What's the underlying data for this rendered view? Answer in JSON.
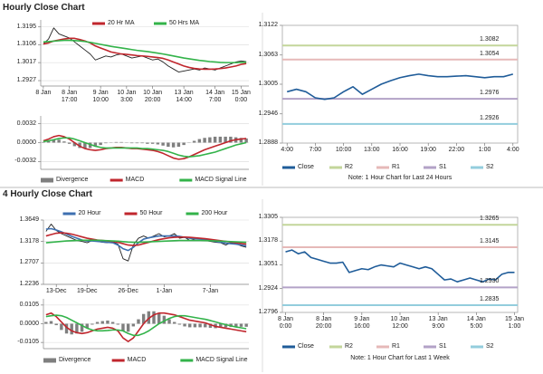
{
  "headings": [
    "Hourly Close Chart",
    "4 Hourly Close Chart"
  ],
  "chart_data": [
    {
      "type": "line",
      "legend": "top",
      "grid": true,
      "ylim": [
        1.29,
        1.323
      ],
      "yticks": [
        1.3195,
        1.3106,
        1.3017,
        1.2927
      ],
      "categories": [
        "8 Jan",
        null,
        null,
        null,
        null,
        "8 Jan\n17:00",
        null,
        null,
        null,
        null,
        null,
        "9 Jan\n10:00",
        null,
        null,
        null,
        null,
        "10 Jan\n3:00",
        null,
        null,
        null,
        null,
        "10 Jan\n20:00",
        null,
        null,
        null,
        null,
        null,
        "13 Jan\n14:00",
        null,
        null,
        null,
        null,
        null,
        "14 Jan\n7:00",
        null,
        null,
        null,
        null,
        "15 Jan\n0:00",
        null
      ],
      "series": [
        {
          "color": "#222222",
          "values": [
            1.311,
            1.3135,
            1.319,
            1.316,
            1.315,
            1.314,
            1.312,
            1.31,
            1.308,
            1.306,
            1.303,
            1.304,
            1.305,
            1.3045,
            1.3055,
            1.306,
            1.305,
            1.304,
            1.3045,
            1.305,
            1.304,
            1.303,
            1.3035,
            1.302,
            1.3,
            1.2985,
            1.297,
            1.2975,
            1.298,
            1.2985,
            1.298,
            1.299,
            1.2985,
            1.298,
            1.299,
            1.3,
            1.301,
            1.302,
            1.3025,
            1.3022
          ]
        },
        {
          "name": "20 Hr MA",
          "color": "#c0262d",
          "values": [
            1.311,
            1.3115,
            1.3125,
            1.313,
            1.3135,
            1.3138,
            1.3138,
            1.3132,
            1.3125,
            1.3115,
            1.31,
            1.309,
            1.308,
            1.307,
            1.3065,
            1.306,
            1.3058,
            1.3055,
            1.3052,
            1.305,
            1.3048,
            1.3045,
            1.3042,
            1.3038,
            1.303,
            1.302,
            1.301,
            1.3,
            1.2993,
            1.2988,
            1.2985,
            1.2984,
            1.2984,
            1.2985,
            1.2987,
            1.299,
            1.2995,
            1.3,
            1.3008,
            1.3012
          ]
        },
        {
          "name": "50 Hrs MA",
          "color": "#33b34a",
          "values": [
            1.312,
            1.3122,
            1.3124,
            1.3126,
            1.3128,
            1.3128,
            1.3127,
            1.3125,
            1.3122,
            1.3118,
            1.3113,
            1.3108,
            1.3103,
            1.3098,
            1.3094,
            1.309,
            1.3086,
            1.3082,
            1.3078,
            1.3075,
            1.3072,
            1.3068,
            1.3064,
            1.306,
            1.3055,
            1.305,
            1.3045,
            1.304,
            1.3036,
            1.3032,
            1.3028,
            1.3025,
            1.3022,
            1.302,
            1.3018,
            1.3017,
            1.3017,
            1.3017,
            1.3018,
            1.3019
          ]
        }
      ]
    },
    {
      "type": "line",
      "legend": "bottom",
      "grid": true,
      "ylim": [
        -0.0045,
        0.0045
      ],
      "yticks": [
        0.0032,
        {
          "value": 0,
          "label": "0.0000"
        },
        -0.0032
      ],
      "series": [
        {
          "name": "Divergence",
          "type": "bar",
          "color": "#7f7f7f",
          "values": [
            0.0001,
            0.0003,
            0.0005,
            0.0005,
            0.0002,
            -0.0002,
            -0.0006,
            -0.0009,
            -0.001,
            -0.0009,
            -0.0007,
            -0.0004,
            -0.0001,
            0.0,
            0.0001,
            0.0001,
            0.0,
            -0.0001,
            -0.0001,
            -0.0001,
            -0.0002,
            -0.0002,
            -0.0003,
            -0.0005,
            -0.0007,
            -0.0008,
            -0.0007,
            -0.0004,
            0.0,
            0.0003,
            0.0006,
            0.0008,
            0.0009,
            0.001,
            0.001,
            0.001,
            0.001,
            0.0009,
            0.0008,
            0.0007
          ]
        },
        {
          "name": "MACD",
          "color": "#c0262d",
          "values": [
            0.0003,
            0.0006,
            0.001,
            0.0012,
            0.001,
            0.0006,
            0.0,
            -0.0006,
            -0.001,
            -0.0012,
            -0.0013,
            -0.0012,
            -0.001,
            -0.0009,
            -0.0008,
            -0.0008,
            -0.0009,
            -0.001,
            -0.001,
            -0.0011,
            -0.0012,
            -0.0013,
            -0.0015,
            -0.0018,
            -0.0022,
            -0.0026,
            -0.0028,
            -0.0027,
            -0.0024,
            -0.002,
            -0.0016,
            -0.0012,
            -0.0009,
            -0.0006,
            -0.0003,
            0.0,
            0.0003,
            0.0005,
            0.0006,
            0.0007
          ]
        },
        {
          "name": "MACD Signal Line",
          "color": "#33b34a",
          "values": [
            0.0002,
            0.0003,
            0.0005,
            0.0007,
            0.0008,
            0.0008,
            0.0006,
            0.0003,
            0.0,
            -0.0003,
            -0.0006,
            -0.0008,
            -0.0009,
            -0.0009,
            -0.0009,
            -0.0009,
            -0.0009,
            -0.0009,
            -0.0009,
            -0.001,
            -0.001,
            -0.0011,
            -0.0012,
            -0.0013,
            -0.0015,
            -0.0018,
            -0.0021,
            -0.0023,
            -0.0024,
            -0.0023,
            -0.0022,
            -0.002,
            -0.0018,
            -0.0016,
            -0.0013,
            -0.001,
            -0.0007,
            -0.0004,
            -0.0002,
            0.0
          ]
        }
      ]
    },
    {
      "type": "line",
      "legend": "bottom",
      "grid": false,
      "note": "Note: 1 Hour Chart for Last 24 Hours",
      "ylim": [
        1.2888,
        1.3122
      ],
      "yticks": [
        1.3122,
        1.3063,
        1.3005,
        1.2946,
        1.2888
      ],
      "categories": [
        "4:00",
        null,
        null,
        "7:00",
        null,
        null,
        "10:00",
        null,
        null,
        "13:00",
        null,
        null,
        "16:00",
        null,
        null,
        "19:00",
        null,
        null,
        "22:00",
        null,
        null,
        "1:00",
        null,
        null,
        "4:00"
      ],
      "series": [
        {
          "name": "Close",
          "color": "#1f5c99",
          "values": [
            1.299,
            1.2995,
            1.299,
            1.2978,
            1.2975,
            1.2978,
            1.299,
            1.3,
            1.2985,
            1.2995,
            1.3005,
            1.3012,
            1.3018,
            1.3022,
            1.3025,
            1.3022,
            1.302,
            1.302,
            1.3021,
            1.3022,
            1.302,
            1.3018,
            1.302,
            1.302,
            1.3025
          ]
        }
      ],
      "levels": [
        {
          "name": "R2",
          "color": "#c3d69b",
          "value": 1.3082
        },
        {
          "name": "R1",
          "color": "#e6b9b8",
          "value": 1.3054
        },
        {
          "name": "S1",
          "color": "#b3a2c7",
          "value": 1.2976
        },
        {
          "name": "S2",
          "color": "#93cddd",
          "value": 1.2926
        }
      ]
    },
    {
      "type": "line",
      "legend": "top",
      "grid": true,
      "ylim": [
        1.2236,
        1.3649
      ],
      "yticks": [
        1.3649,
        1.3178,
        1.2707,
        1.2236
      ],
      "categories": [
        null,
        null,
        "13-Dec",
        null,
        null,
        null,
        null,
        null,
        "19-Dec",
        null,
        null,
        null,
        null,
        null,
        null,
        null,
        "26-Dec",
        null,
        null,
        null,
        null,
        null,
        null,
        "1-Jan",
        null,
        null,
        null,
        null,
        null,
        null,
        null,
        null,
        "7-Jan",
        null,
        null,
        null,
        null,
        null,
        null,
        null
      ],
      "series": [
        {
          "color": "#222222",
          "values": [
            1.34,
            1.356,
            1.342,
            1.335,
            1.33,
            1.325,
            1.32,
            1.318,
            1.315,
            1.32,
            1.318,
            1.316,
            1.315,
            1.317,
            1.312,
            1.28,
            1.275,
            1.31,
            1.325,
            1.33,
            1.325,
            1.33,
            1.335,
            1.328,
            1.33,
            1.335,
            1.325,
            1.327,
            1.32,
            1.323,
            1.325,
            1.32,
            1.318,
            1.316,
            1.315,
            1.31,
            1.315,
            1.313,
            1.308,
            1.305
          ]
        },
        {
          "name": "20 Hour",
          "color": "#3d6fb0",
          "values": [
            1.345,
            1.346,
            1.343,
            1.339,
            1.334,
            1.329,
            1.325,
            1.321,
            1.319,
            1.319,
            1.318,
            1.317,
            1.316,
            1.315,
            1.31,
            1.302,
            1.298,
            1.305,
            1.315,
            1.323,
            1.326,
            1.328,
            1.33,
            1.33,
            1.33,
            1.33,
            1.329,
            1.327,
            1.325,
            1.324,
            1.323,
            1.322,
            1.32,
            1.318,
            1.316,
            1.314,
            1.313,
            1.312,
            1.31,
            1.308
          ]
        },
        {
          "name": "50 Hour",
          "color": "#c0262d",
          "values": [
            1.33,
            1.333,
            1.336,
            1.337,
            1.336,
            1.334,
            1.331,
            1.328,
            1.325,
            1.323,
            1.321,
            1.32,
            1.319,
            1.318,
            1.316,
            1.313,
            1.31,
            1.309,
            1.31,
            1.313,
            1.316,
            1.319,
            1.322,
            1.324,
            1.326,
            1.327,
            1.3275,
            1.3275,
            1.327,
            1.326,
            1.325,
            1.324,
            1.3225,
            1.321,
            1.3195,
            1.318,
            1.3165,
            1.315,
            1.3135,
            1.312
          ]
        },
        {
          "name": "200 Hour",
          "color": "#33b34a",
          "values": [
            1.315,
            1.316,
            1.317,
            1.318,
            1.319,
            1.3195,
            1.32,
            1.3205,
            1.3205,
            1.3205,
            1.3205,
            1.32,
            1.3195,
            1.319,
            1.3185,
            1.3175,
            1.3165,
            1.316,
            1.316,
            1.3165,
            1.317,
            1.3175,
            1.318,
            1.3185,
            1.319,
            1.3195,
            1.32,
            1.32,
            1.32,
            1.32,
            1.32,
            1.3198,
            1.3195,
            1.319,
            1.3185,
            1.318,
            1.3175,
            1.317,
            1.3165,
            1.316
          ]
        }
      ]
    },
    {
      "type": "line",
      "legend": "bottom",
      "grid": true,
      "ylim": [
        -0.014,
        0.014
      ],
      "yticks": [
        0.0105,
        {
          "value": 0,
          "label": "0.0000"
        },
        -0.0105
      ],
      "series": [
        {
          "name": "Divergence",
          "type": "bar",
          "color": "#7f7f7f",
          "values": [
            0.001,
            0.0015,
            -0.0008,
            -0.0035,
            -0.0055,
            -0.006,
            -0.0055,
            -0.0045,
            -0.0025,
            -0.0005,
            0.001,
            0.0015,
            0.0018,
            0.001,
            -0.0005,
            -0.004,
            -0.0045,
            -0.0015,
            0.0025,
            0.0055,
            0.007,
            0.007,
            0.006,
            0.0045,
            0.0025,
            0.001,
            -0.0005,
            -0.0015,
            -0.002,
            -0.002,
            -0.002,
            -0.002,
            -0.0023,
            -0.0025,
            -0.0022,
            -0.002,
            -0.0018,
            -0.0017,
            -0.0017,
            -0.0017
          ]
        },
        {
          "name": "MACD",
          "color": "#c0262d",
          "values": [
            0.005,
            0.006,
            0.004,
            0.001,
            -0.002,
            -0.004,
            -0.005,
            -0.0055,
            -0.005,
            -0.004,
            -0.003,
            -0.0025,
            -0.002,
            -0.0025,
            -0.004,
            -0.008,
            -0.01,
            -0.008,
            -0.004,
            0.0,
            0.003,
            0.005,
            0.006,
            0.006,
            0.0055,
            0.005,
            0.004,
            0.003,
            0.002,
            0.0015,
            0.001,
            0.0005,
            -0.0005,
            -0.0015,
            -0.002,
            -0.0025,
            -0.003,
            -0.0035,
            -0.004,
            -0.0045
          ]
        },
        {
          "name": "MACD Signal Line",
          "color": "#33b34a",
          "values": [
            0.004,
            0.0045,
            0.0048,
            0.0045,
            0.0035,
            0.002,
            0.0005,
            -0.001,
            -0.0025,
            -0.0035,
            -0.004,
            -0.004,
            -0.0038,
            -0.0035,
            -0.0035,
            -0.004,
            -0.0055,
            -0.0065,
            -0.0065,
            -0.0055,
            -0.004,
            -0.002,
            0.0,
            0.0015,
            0.003,
            0.004,
            0.0045,
            0.0045,
            0.004,
            0.0035,
            0.003,
            0.0025,
            0.0018,
            0.001,
            0.0002,
            -0.0005,
            -0.0012,
            -0.0018,
            -0.0023,
            -0.0028
          ]
        }
      ]
    },
    {
      "type": "line",
      "legend": "bottom",
      "grid": false,
      "note": "Note: 1 Hour Chart for Last 1 Week",
      "ylim": [
        1.2796,
        1.3305
      ],
      "yticks": [
        1.3305,
        1.3178,
        1.3051,
        1.2924,
        1.2796
      ],
      "categories": [
        "8 Jan\n0:00",
        null,
        null,
        null,
        null,
        null,
        "8 Jan\n20:00",
        null,
        null,
        null,
        null,
        null,
        "9 Jan\n16:00",
        null,
        null,
        null,
        null,
        null,
        "10 Jan\n12:00",
        null,
        null,
        null,
        null,
        null,
        "13 Jan\n9:00",
        null,
        null,
        null,
        null,
        null,
        "14 Jan\n5:00",
        null,
        null,
        null,
        null,
        null,
        "15 Jan\n1:00"
      ],
      "series": [
        {
          "name": "Close",
          "color": "#1f5c99",
          "values": [
            1.312,
            1.313,
            1.311,
            1.312,
            1.309,
            1.308,
            1.307,
            1.306,
            1.306,
            1.3065,
            1.301,
            1.302,
            1.303,
            1.3025,
            1.304,
            1.305,
            1.3045,
            1.304,
            1.306,
            1.305,
            1.304,
            1.303,
            1.304,
            1.303,
            1.3,
            1.297,
            1.2975,
            1.296,
            1.297,
            1.298,
            1.297,
            1.296,
            1.2975,
            1.297,
            1.3,
            1.301,
            1.301
          ]
        }
      ],
      "levels": [
        {
          "name": "R2",
          "color": "#c3d69b",
          "value": 1.3265
        },
        {
          "name": "R1",
          "color": "#e6b9b8",
          "value": 1.3145
        },
        {
          "name": "S1",
          "color": "#b3a2c7",
          "value": 1.293,
          "value_label": "1.2930"
        },
        {
          "name": "S2",
          "color": "#93cddd",
          "value": 1.2835
        }
      ]
    }
  ]
}
